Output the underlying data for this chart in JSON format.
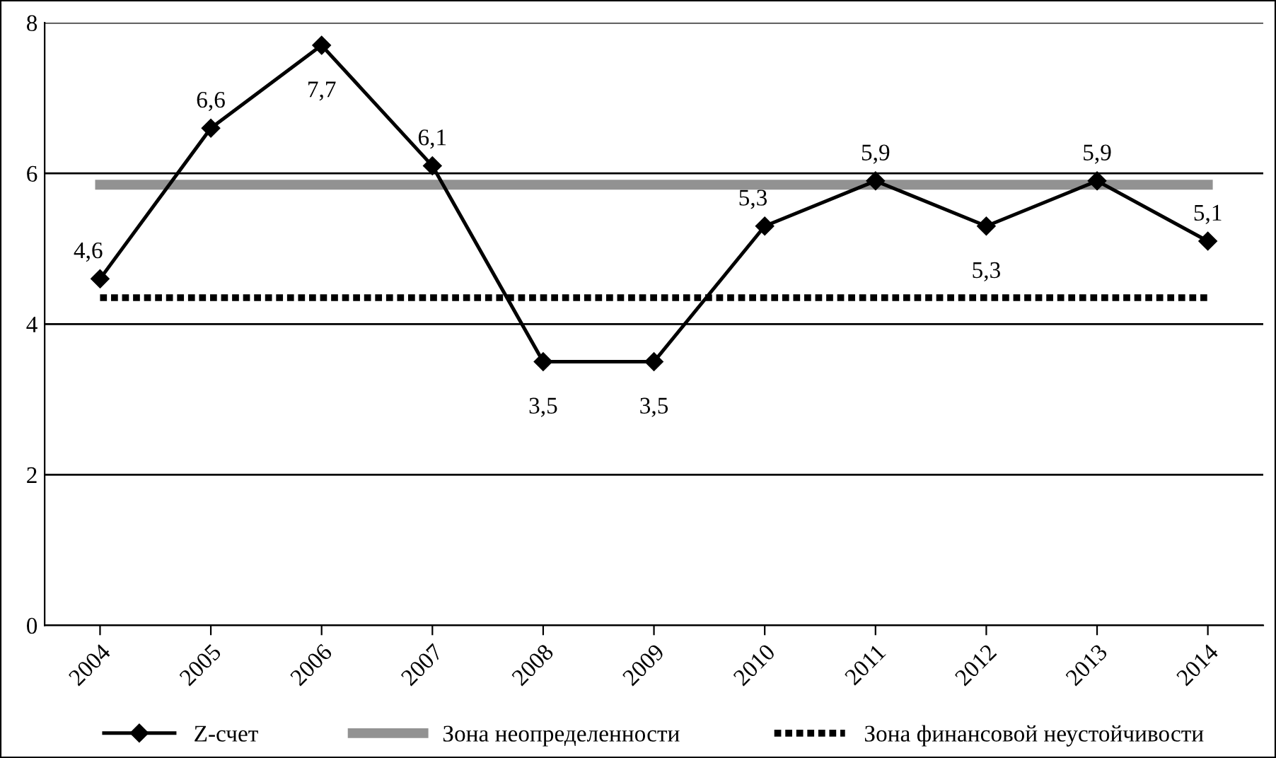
{
  "chart_data": {
    "type": "line",
    "categories": [
      "2004",
      "2005",
      "2006",
      "2007",
      "2008",
      "2009",
      "2010",
      "2011",
      "2012",
      "2013",
      "2014"
    ],
    "series": [
      {
        "name": "Z-счет",
        "color": "#000000",
        "marker": "diamond",
        "line_style": "solid",
        "values": [
          4.6,
          6.6,
          7.7,
          6.1,
          3.5,
          3.5,
          5.3,
          5.9,
          5.3,
          5.9,
          5.1
        ],
        "value_labels": [
          "4,6",
          "6,6",
          "7,7",
          "6,1",
          "3,5",
          "3,5",
          "5,3",
          "5,9",
          "5,3",
          "5,9",
          "5,1"
        ]
      },
      {
        "name": "Зона неопределенности",
        "color": "#929292",
        "marker": "none",
        "line_style": "solid",
        "values": [
          5.85,
          5.85,
          5.85,
          5.85,
          5.85,
          5.85,
          5.85,
          5.85,
          5.85,
          5.85,
          5.85
        ]
      },
      {
        "name": "Зона финансовой неустойчивости",
        "color": "#000000",
        "marker": "none",
        "line_style": "dotted",
        "values": [
          4.35,
          4.35,
          4.35,
          4.35,
          4.35,
          4.35,
          4.35,
          4.35,
          4.35,
          4.35,
          4.35
        ]
      }
    ],
    "ylim": [
      0,
      8
    ],
    "yticks": [
      0,
      2,
      4,
      6,
      8
    ],
    "grid": "y",
    "legend": "bottom"
  }
}
